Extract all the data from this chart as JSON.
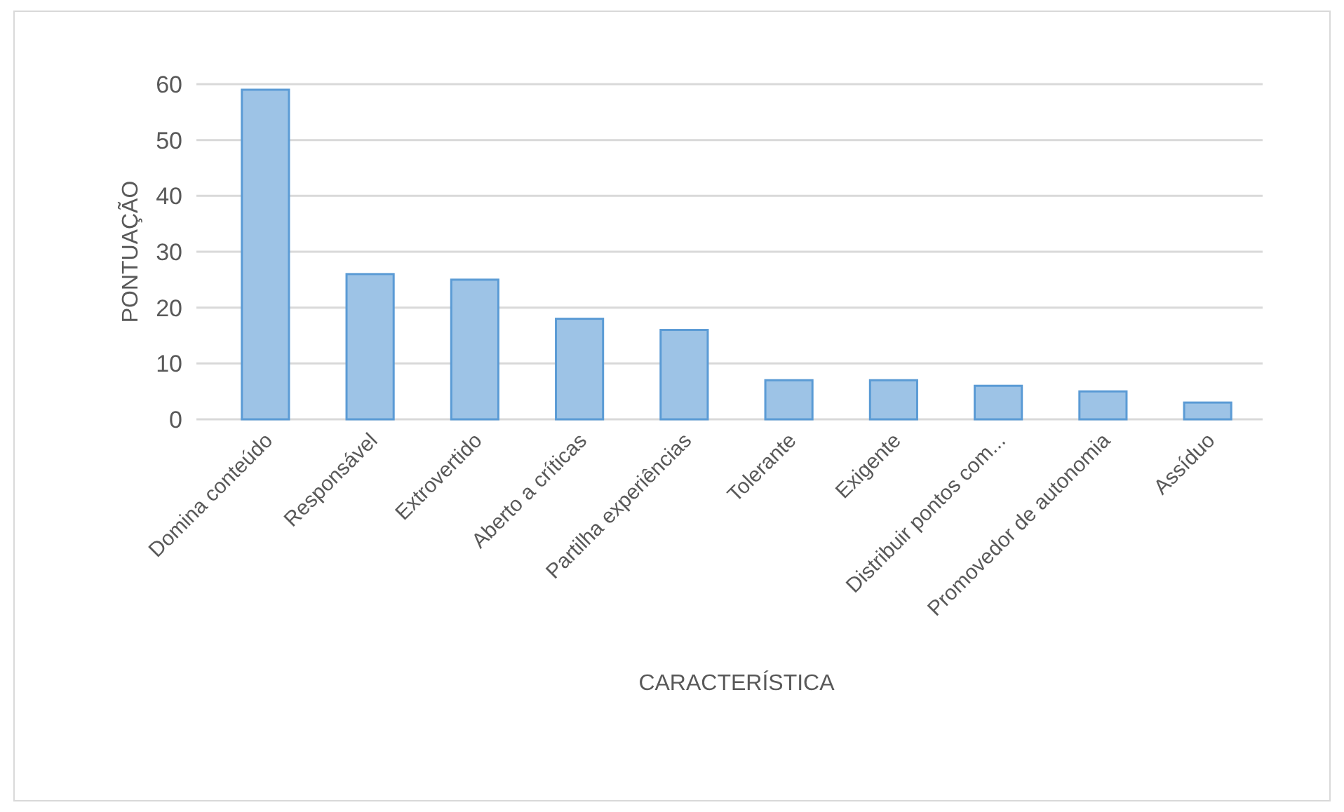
{
  "chart_data": {
    "type": "bar",
    "xlabel": "CARACTERÍSTICA",
    "ylabel": "PONTUAÇÃO",
    "categories": [
      "Domina conteúdo",
      "Responsável",
      "Extrovertido",
      "Aberto a críticas",
      "Partilha experiências",
      "Tolerante",
      "Exigente",
      "Distribuir pontos com...",
      "Promovedor de autonomia",
      "Assíduo"
    ],
    "values": [
      59,
      26,
      25,
      18,
      16,
      7,
      7,
      6,
      5,
      3
    ],
    "color": "#9dc3e6",
    "ylim": [
      0,
      60
    ],
    "yticks": [
      0,
      10,
      20,
      30,
      40,
      50,
      60
    ],
    "grid": "y"
  }
}
